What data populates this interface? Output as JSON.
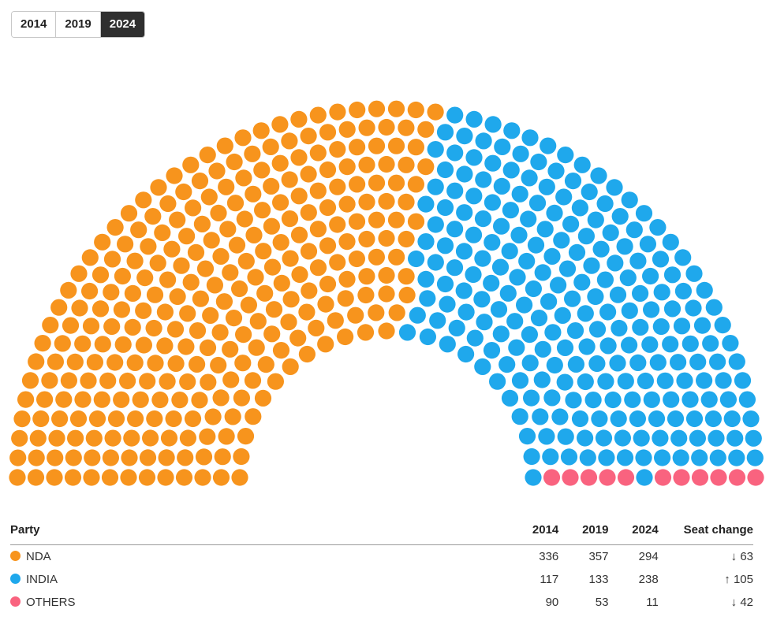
{
  "year_toggle": {
    "years": [
      "2014",
      "2019",
      "2024"
    ],
    "selected": "2024"
  },
  "chart_data": {
    "type": "parliament",
    "year": "2024",
    "total_seats": 543,
    "rows": 13,
    "series": [
      {
        "name": "NDA",
        "value": 294,
        "color": "#F7941D"
      },
      {
        "name": "INDIA",
        "value": 238,
        "color": "#1FA8EC"
      },
      {
        "name": "OTHERS",
        "value": 11,
        "color": "#F9637F"
      }
    ]
  },
  "table": {
    "headers": {
      "party": "Party",
      "y2014": "2014",
      "y2019": "2019",
      "y2024": "2024",
      "change": "Seat change"
    },
    "rows": [
      {
        "party": "NDA",
        "color": "#F7941D",
        "y2014": "336",
        "y2019": "357",
        "y2024": "294",
        "change_arrow": "↓",
        "change": "63",
        "direction": "down"
      },
      {
        "party": "INDIA",
        "color": "#1FA8EC",
        "y2014": "117",
        "y2019": "133",
        "y2024": "238",
        "change_arrow": "↑",
        "change": "105",
        "direction": "up"
      },
      {
        "party": "OTHERS",
        "color": "#F9637F",
        "y2014": "90",
        "y2019": "53",
        "y2024": "11",
        "change_arrow": "↓",
        "change": "42",
        "direction": "down"
      }
    ]
  }
}
